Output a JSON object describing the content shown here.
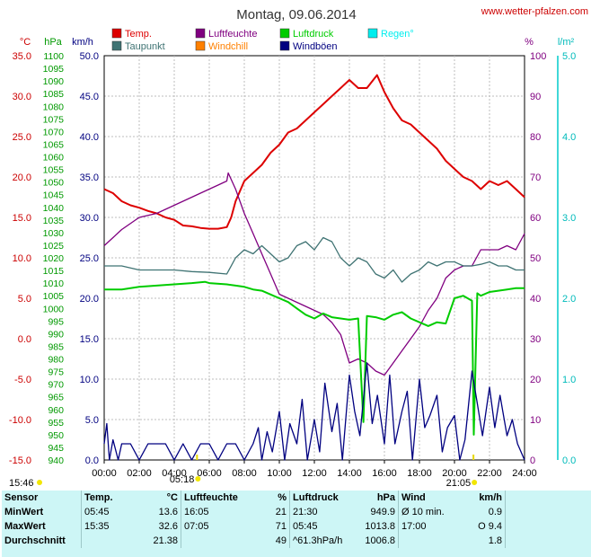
{
  "title": "Montag, 09.06.2014",
  "site": "www.wetter-pfalzen.com",
  "chart_data": {
    "type": "line",
    "x_ticks": [
      "00:00",
      "02:00",
      "04:00",
      "06:00",
      "08:00",
      "10:00",
      "12:00",
      "14:00",
      "16:00",
      "18:00",
      "20:00",
      "22:00",
      "24:00"
    ],
    "xlim": [
      0,
      24
    ],
    "grid": true,
    "legend_position": "top",
    "axes": [
      {
        "unit": "°C",
        "range": [
          -15,
          35
        ],
        "ticks": [
          "35.0",
          "30.0",
          "25.0",
          "20.0",
          "15.0",
          "10.0",
          "5.0",
          "0.0",
          "-5.0",
          "-10.0",
          "-15.0"
        ],
        "color": "#cc0000"
      },
      {
        "unit": "hPa",
        "range": [
          940,
          1100
        ],
        "step": 5,
        "color": "#009900"
      },
      {
        "unit": "km/h",
        "range": [
          0,
          50
        ],
        "ticks": [
          "50.0",
          "45.0",
          "40.0",
          "35.0",
          "30.0",
          "25.0",
          "20.0",
          "15.0",
          "10.0",
          "5.0",
          "0.0"
        ],
        "color": "#000080"
      },
      {
        "unit": "%",
        "range": [
          0,
          100
        ],
        "ticks": [
          "100",
          "90",
          "80",
          "70",
          "60",
          "50",
          "40",
          "30",
          "20",
          "10",
          "0"
        ],
        "color": "#800080"
      },
      {
        "unit": "l/m²",
        "range": [
          0,
          5
        ],
        "ticks": [
          "5.0",
          "4.0",
          "3.0",
          "2.0",
          "1.0",
          "0.0"
        ],
        "color": "#00bbbb"
      }
    ],
    "legend": [
      {
        "name": "Temp.",
        "color": "#dd0000"
      },
      {
        "name": "Luftfeuchte",
        "color": "#800080"
      },
      {
        "name": "Luftdruck",
        "color": "#00cc00"
      },
      {
        "name": "Regen°",
        "color": "#00eeee"
      },
      {
        "name": "Taupunkt",
        "color": "#3f7373"
      },
      {
        "name": "Windchill",
        "color": "#ff8000"
      },
      {
        "name": "Windböen",
        "color": "#000080"
      }
    ],
    "series": [
      {
        "name": "Temp.",
        "axis": "°C",
        "color": "#dd0000",
        "x": [
          0,
          0.5,
          1,
          1.5,
          2,
          2.5,
          3,
          3.5,
          4,
          4.5,
          5,
          5.5,
          6,
          6.5,
          7,
          7.25,
          7.5,
          8,
          8.5,
          9,
          9.5,
          10,
          10.5,
          11,
          11.5,
          12,
          12.5,
          13,
          13.5,
          14,
          14.5,
          15,
          15.58,
          16,
          16.5,
          17,
          17.5,
          18,
          18.5,
          19,
          19.5,
          20,
          20.5,
          21,
          21.5,
          22,
          22.5,
          23,
          23.5,
          24
        ],
        "y": [
          18.5,
          18.0,
          17.0,
          16.5,
          16.2,
          15.8,
          15.5,
          15.0,
          14.7,
          14.0,
          13.9,
          13.7,
          13.6,
          13.6,
          13.8,
          15.0,
          17.0,
          19.5,
          20.5,
          21.5,
          23.0,
          24.0,
          25.5,
          26.0,
          27.0,
          28.0,
          29.0,
          30.0,
          31.0,
          32.0,
          31.0,
          31.0,
          32.6,
          30.5,
          28.5,
          27.0,
          26.5,
          25.5,
          24.5,
          23.5,
          22.0,
          21.0,
          20.0,
          19.5,
          18.5,
          19.5,
          19.0,
          19.5,
          18.5,
          17.5
        ]
      },
      {
        "name": "Luftfeuchte",
        "axis": "%",
        "color": "#800080",
        "x": [
          0,
          0.5,
          1,
          2,
          3,
          4,
          5,
          6,
          6.5,
          7,
          7.08,
          7.5,
          8,
          8.5,
          9,
          9.5,
          10,
          10.5,
          11,
          11.5,
          12,
          12.5,
          13,
          13.5,
          14,
          14.5,
          15,
          15.5,
          16,
          16.5,
          17,
          17.5,
          18,
          18.5,
          19,
          19.5,
          20,
          20.5,
          21,
          21.5,
          22,
          22.5,
          23,
          23.5,
          24
        ],
        "y": [
          53,
          55,
          57,
          60,
          61,
          63,
          65,
          67,
          68,
          69,
          71,
          67,
          61,
          56,
          51,
          46,
          41,
          40,
          39,
          38,
          37,
          36,
          34,
          31,
          24,
          25,
          24,
          22,
          21,
          24,
          27,
          30,
          33,
          37,
          40,
          45,
          47,
          48,
          48,
          52,
          52,
          52,
          53,
          52,
          56
        ]
      },
      {
        "name": "Taupunkt",
        "axis": "°C",
        "color": "#3f7373",
        "x": [
          0,
          1,
          2,
          3,
          4,
          5,
          6,
          7,
          7.5,
          8,
          8.5,
          9,
          9.5,
          10,
          10.5,
          11,
          11.5,
          12,
          12.5,
          13,
          13.5,
          14,
          14.5,
          15,
          15.5,
          16,
          16.5,
          17,
          17.5,
          18,
          18.5,
          19,
          19.5,
          20,
          20.5,
          21,
          21.5,
          22,
          22.5,
          23,
          23.5,
          24
        ],
        "y": [
          9.0,
          9.0,
          8.5,
          8.5,
          8.5,
          8.3,
          8.2,
          8.0,
          10.0,
          11.0,
          10.5,
          11.5,
          10.5,
          9.5,
          10.0,
          11.5,
          12.0,
          11.0,
          12.5,
          12.0,
          10.0,
          9.0,
          10.0,
          9.5,
          8.0,
          7.5,
          8.5,
          7.0,
          8.0,
          8.5,
          9.5,
          9.0,
          9.5,
          9.5,
          9.0,
          9.0,
          9.2,
          9.5,
          9.0,
          9.0,
          8.5,
          8.5
        ]
      },
      {
        "name": "Luftdruck",
        "axis": "hPa",
        "color": "#00cc00",
        "x": [
          0,
          1,
          2,
          3,
          4,
          5,
          5.75,
          6,
          7,
          7.5,
          8,
          8.5,
          9,
          9.5,
          10,
          10.5,
          11,
          11.5,
          12,
          12.5,
          13,
          13.5,
          14,
          14.5,
          14.8,
          15,
          15.5,
          16,
          16.5,
          17,
          17.5,
          18,
          18.5,
          19,
          19.5,
          20,
          20.5,
          21,
          21.1,
          21.3,
          21.5,
          22,
          22.5,
          23,
          23.5,
          24
        ],
        "y": [
          1007.5,
          1007.5,
          1008.5,
          1009.0,
          1009.5,
          1010.0,
          1010.5,
          1010.0,
          1009.5,
          1009.0,
          1008.5,
          1007.5,
          1007.0,
          1005.5,
          1004.0,
          1002.5,
          1000.0,
          997.5,
          996.0,
          998.0,
          996.5,
          996.0,
          995.5,
          996.0,
          955.0,
          997.0,
          996.5,
          995.5,
          997.5,
          998.5,
          996.0,
          994.5,
          993.0,
          994.5,
          994.0,
          1004.0,
          1005.0,
          1003.0,
          950.0,
          1006.0,
          1005.0,
          1006.5,
          1007.0,
          1007.5,
          1008.0,
          1008.0
        ]
      },
      {
        "name": "Windböen",
        "axis": "km/h",
        "color": "#000080",
        "x": [
          0,
          0.15,
          0.3,
          0.5,
          0.8,
          1,
          1.5,
          2,
          2.5,
          3,
          3.5,
          4,
          4.5,
          5,
          5.5,
          6,
          6.5,
          7,
          7.5,
          8,
          8.5,
          8.8,
          9,
          9.3,
          9.6,
          10,
          10.3,
          10.6,
          11,
          11.3,
          11.6,
          12,
          12.3,
          12.6,
          13,
          13.3,
          13.6,
          14,
          14.3,
          14.6,
          15,
          15.3,
          15.6,
          16,
          16.3,
          16.6,
          17,
          17.3,
          17.6,
          18,
          18.3,
          18.6,
          19,
          19.3,
          19.6,
          20,
          20.3,
          20.6,
          21,
          21.3,
          21.6,
          22,
          22.3,
          22.6,
          23,
          23.3,
          23.6,
          24
        ],
        "y": [
          2.0,
          4.5,
          0.0,
          2.5,
          0.0,
          2.0,
          2.0,
          0.0,
          2.0,
          2.0,
          2.0,
          0.0,
          2.0,
          0.0,
          2.0,
          2.0,
          0.0,
          2.0,
          2.0,
          0.0,
          2.0,
          4.0,
          0.0,
          3.5,
          1.0,
          6.0,
          0.0,
          4.5,
          2.0,
          7.5,
          0.0,
          5.0,
          1.0,
          9.5,
          3.5,
          7.0,
          0.0,
          10.5,
          6.0,
          3.0,
          12.0,
          4.5,
          8.0,
          2.0,
          10.5,
          2.0,
          6.0,
          8.5,
          0.0,
          10.0,
          4.0,
          5.5,
          8.0,
          1.0,
          4.0,
          5.5,
          0.0,
          2.5,
          11.0,
          7.0,
          3.0,
          9.0,
          4.0,
          8.0,
          3.0,
          5.0,
          2.0,
          0.0
        ]
      }
    ],
    "sun": {
      "rise": "05:18",
      "set": "21:05",
      "moon_rise": "15:46"
    }
  },
  "stats": {
    "headers": [
      "Sensor",
      "Temp.",
      "°C",
      "Luftfeuchte",
      "%",
      "Luftdruck",
      "hPa",
      "Wind",
      "km/h"
    ],
    "rows": [
      [
        "MinWert",
        "05:45",
        "13.6",
        "16:05",
        "21",
        "21:30",
        "949.9",
        "Ø 10 min.",
        "0.9"
      ],
      [
        "MaxWert",
        "15:35",
        "32.6",
        "07:05",
        "71",
        "05:45",
        "1013.8",
        "17:00",
        "O 9.4"
      ],
      [
        "Durchschnitt",
        "",
        "21.38",
        "",
        "49",
        "^61.3hPa/h",
        "1006.8",
        "",
        "1.8"
      ]
    ]
  }
}
